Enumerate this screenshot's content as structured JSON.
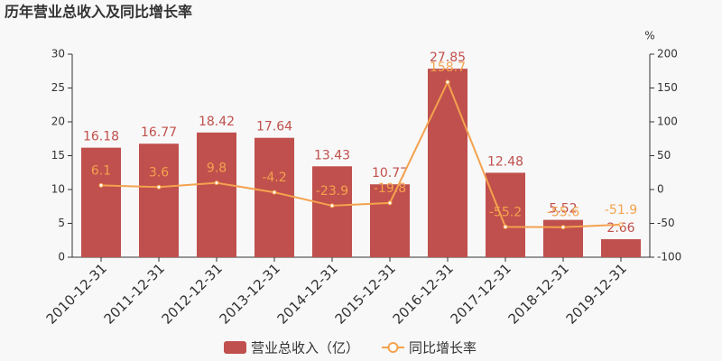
{
  "chart_data": {
    "type": "bar",
    "title": "历年营业总收入及同比增长率",
    "categories": [
      "2010-12-31",
      "2011-12-31",
      "2012-12-31",
      "2013-12-31",
      "2014-12-31",
      "2015-12-31",
      "2016-12-31",
      "2017-12-31",
      "2018-12-31",
      "2019-12-31"
    ],
    "series": [
      {
        "name": "营业总收入（亿）",
        "type": "bar",
        "color": "#c0504d",
        "values": [
          16.18,
          16.77,
          18.42,
          17.64,
          13.43,
          10.77,
          27.85,
          12.48,
          5.52,
          2.66
        ]
      },
      {
        "name": "同比增长率",
        "type": "line",
        "axis": "y2",
        "color": "#f4a24e",
        "values": [
          6.1,
          3.6,
          9.8,
          -4.2,
          -23.9,
          -19.8,
          158.7,
          -55.2,
          -55.6,
          -51.9
        ]
      }
    ],
    "ylim": [
      0,
      30
    ],
    "yticks": [
      0,
      5,
      10,
      15,
      20,
      25,
      30
    ],
    "y2lim": [
      -100,
      200
    ],
    "y2ticks": [
      -100,
      -50,
      0,
      50,
      100,
      150,
      200
    ],
    "y2label": "%",
    "grid": false
  }
}
